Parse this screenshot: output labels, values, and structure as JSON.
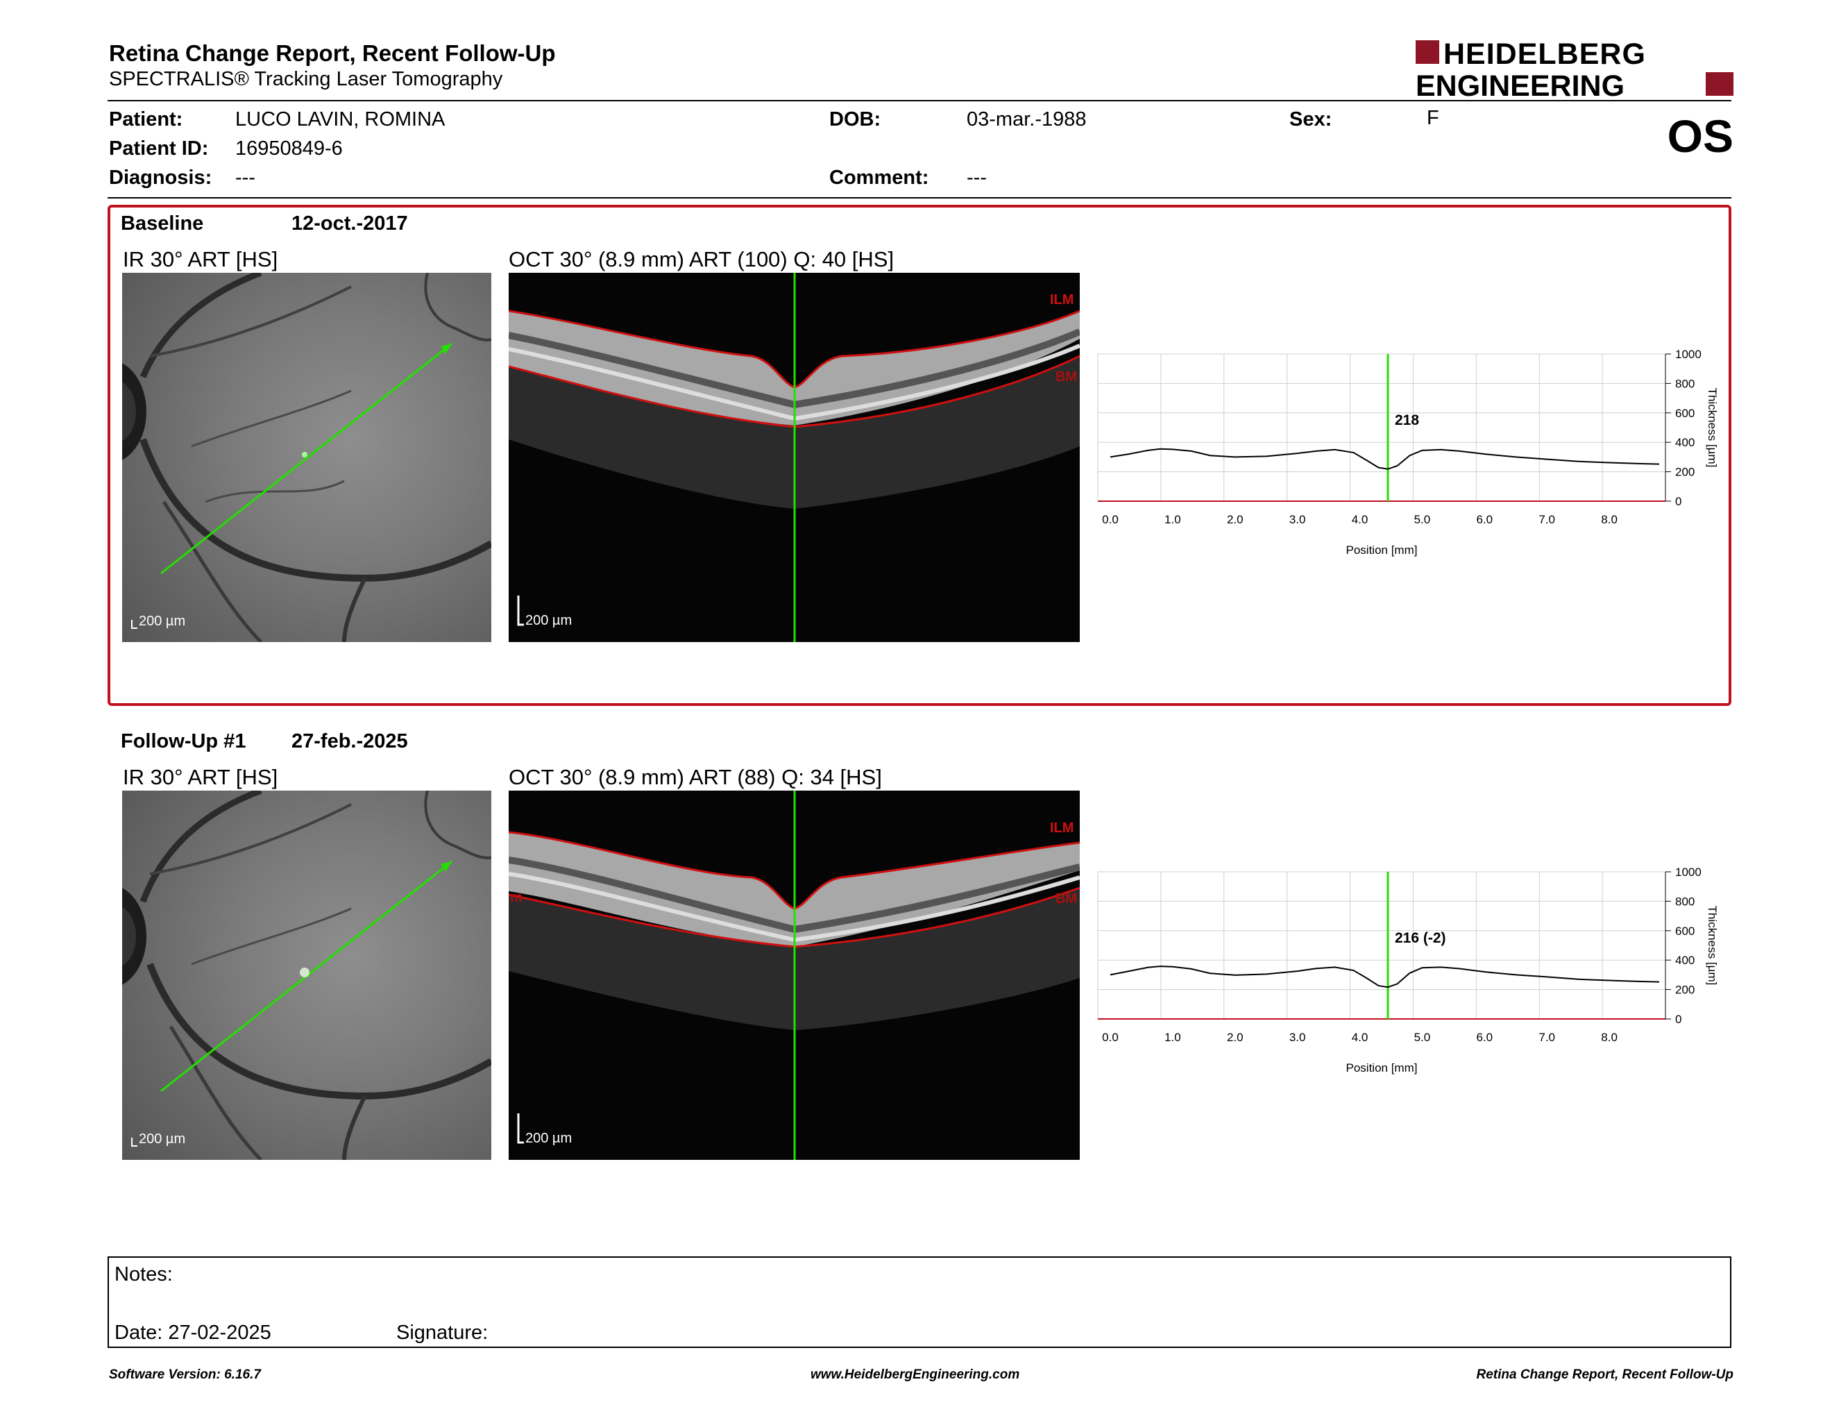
{
  "header": {
    "title": "Retina Change Report, Recent Follow-Up",
    "subtitle": "SPECTRALIS® Tracking Laser Tomography",
    "logo_line1": "HEIDELBERG",
    "logo_line2": "ENGINEERING",
    "eye": "OS"
  },
  "patient": {
    "patient_label": "Patient:",
    "patient_value": "LUCO LAVIN, ROMINA",
    "id_label": "Patient ID:",
    "id_value": "16950849-6",
    "diagnosis_label": "Diagnosis:",
    "diagnosis_value": "---",
    "dob_label": "DOB:",
    "dob_value": "03-mar.-1988",
    "comment_label": "Comment:",
    "comment_value": "---",
    "sex_label": "Sex:",
    "sex_value": "F"
  },
  "baseline": {
    "label": "Baseline",
    "date": "12-oct.-2017",
    "ir_label": "IR 30° ART [HS]",
    "oct_label": "OCT 30° (8.9 mm) ART (100) Q: 40 [HS]",
    "scale": "200 µm",
    "ilm": "ILM",
    "bm": "BM",
    "thickness_value": "218"
  },
  "followup": {
    "label": "Follow-Up #1",
    "date": "27-feb.-2025",
    "ir_label": "IR 30° ART [HS]",
    "oct_label": "OCT 30° (8.9 mm) ART (88) Q: 34 [HS]",
    "scale": "200 µm",
    "ilm": "ILM",
    "bm": "BM",
    "bm_left": "m",
    "thickness_value": "216 (-2)"
  },
  "chart_common": {
    "xlabel": "Position [mm]",
    "ylabel": "Thickness [µm]",
    "x_ticks": [
      "0.0",
      "1.0",
      "2.0",
      "3.0",
      "4.0",
      "5.0",
      "6.0",
      "7.0",
      "8.0"
    ],
    "y_ticks": [
      "1000",
      "800",
      "600",
      "400",
      "200",
      "0"
    ]
  },
  "chart_data": [
    {
      "type": "line",
      "title": "",
      "xlabel": "Position [mm]",
      "ylabel": "Thickness [µm]",
      "xlim": [
        -0.2,
        8.9
      ],
      "ylim": [
        0,
        1000
      ],
      "grid": true,
      "marker_x": 4.45,
      "marker_label": "218",
      "series": [
        {
          "x": [
            0.0,
            0.3,
            0.6,
            0.8,
            1.0,
            1.3,
            1.6,
            2.0,
            2.5,
            3.0,
            3.3,
            3.6,
            3.9,
            4.1,
            4.3,
            4.45,
            4.6,
            4.8,
            5.0,
            5.3,
            5.6,
            6.0,
            6.5,
            7.0,
            7.5,
            8.0,
            8.5,
            8.8
          ],
          "y": [
            300,
            320,
            345,
            355,
            352,
            340,
            310,
            300,
            305,
            325,
            340,
            350,
            330,
            280,
            228,
            218,
            240,
            310,
            345,
            350,
            340,
            320,
            300,
            285,
            270,
            262,
            255,
            252
          ]
        }
      ]
    },
    {
      "type": "line",
      "title": "",
      "xlabel": "Position [mm]",
      "ylabel": "Thickness [µm]",
      "xlim": [
        -0.2,
        8.9
      ],
      "ylim": [
        0,
        1000
      ],
      "grid": true,
      "marker_x": 4.45,
      "marker_label": "216 (-2)",
      "series": [
        {
          "x": [
            0.0,
            0.3,
            0.6,
            0.8,
            1.0,
            1.3,
            1.6,
            2.0,
            2.5,
            3.0,
            3.3,
            3.6,
            3.9,
            4.1,
            4.3,
            4.45,
            4.6,
            4.8,
            5.0,
            5.3,
            5.6,
            6.0,
            6.5,
            7.0,
            7.5,
            8.0,
            8.5,
            8.8
          ],
          "y": [
            300,
            325,
            350,
            358,
            355,
            340,
            310,
            298,
            305,
            325,
            343,
            352,
            330,
            280,
            226,
            216,
            238,
            312,
            348,
            352,
            342,
            320,
            300,
            286,
            270,
            262,
            255,
            252
          ]
        }
      ]
    }
  ],
  "notes": {
    "notes_label": "Notes:",
    "date_label": "Date: 27-02-2025",
    "signature_label": "Signature:"
  },
  "footer": {
    "software": "Software Version: 6.16.7",
    "website": "www.HeidelbergEngineering.com",
    "report": "Retina Change Report, Recent Follow-Up"
  },
  "colors": {
    "brand": "#8e1525",
    "panel_border": "#c0111f",
    "scan_line": "#23e000",
    "segmentation": "#d01010"
  }
}
